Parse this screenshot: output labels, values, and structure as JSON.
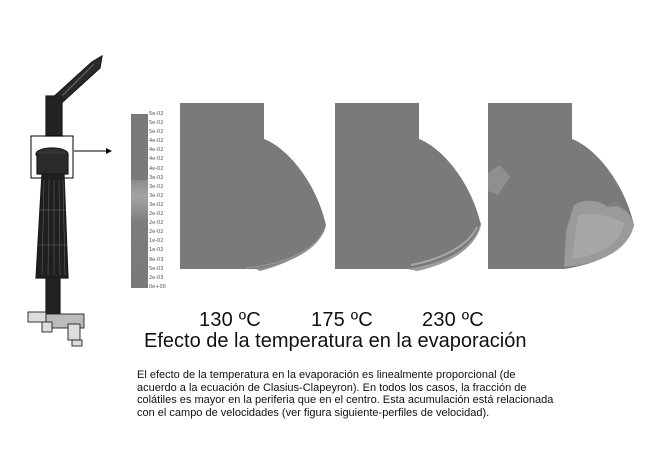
{
  "legend": {
    "ticks": [
      "5e-02",
      "5e-02",
      "5e-02",
      "4e-02",
      "4e-02",
      "4e-02",
      "4e-02",
      "3e-02",
      "3e-02",
      "3e-02",
      "3e-02",
      "2e-02",
      "2e-02",
      "2e-02",
      "1e-02",
      "1e-02",
      "8e-03",
      "5e-03",
      "2e-03",
      "0e+00"
    ]
  },
  "panels": [
    {
      "temperature": "130 ºC"
    },
    {
      "temperature": "175 ºC"
    },
    {
      "temperature": "230 ºC"
    }
  ],
  "title": "Efecto de la temperatura en la evaporación",
  "description": "El efecto de la temperatura en la evaporación es linealmente proporcional (de\nacuerdo a la ecuación de Clasius-Clapeyron). En todos los casos, la fracción de\ncolátiles es mayor en la periferia que en el centro. Esta acumulación está relacionada\ncon el campo de velocidades (ver figura siguiente-perfiles de velocidad).",
  "colors": {
    "field": "#7a7a7a",
    "edge_light": "#a8a8a8",
    "edge_mid": "#909090",
    "wire": "#1a1a1a"
  }
}
